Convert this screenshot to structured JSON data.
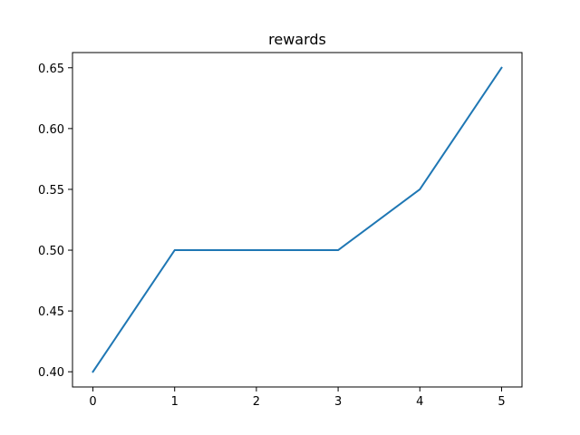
{
  "chart_data": {
    "type": "line",
    "title": "rewards",
    "xlabel": "",
    "ylabel": "",
    "x": [
      0,
      1,
      2,
      3,
      4,
      5
    ],
    "series": [
      {
        "values": [
          0.4,
          0.5,
          0.5,
          0.5,
          0.55,
          0.65
        ],
        "color": "#1f77b4"
      }
    ],
    "xlim": [
      -0.25,
      5.25
    ],
    "ylim": [
      0.3875,
      0.6625
    ],
    "x_ticks": [
      0,
      1,
      2,
      3,
      4,
      5
    ],
    "x_tick_labels": [
      "0",
      "1",
      "2",
      "3",
      "4",
      "5"
    ],
    "y_ticks": [
      0.4,
      0.45,
      0.5,
      0.55,
      0.6,
      0.65
    ],
    "y_tick_labels": [
      "0.40",
      "0.45",
      "0.50",
      "0.55",
      "0.60",
      "0.65"
    ],
    "grid": false,
    "legend": "none"
  }
}
